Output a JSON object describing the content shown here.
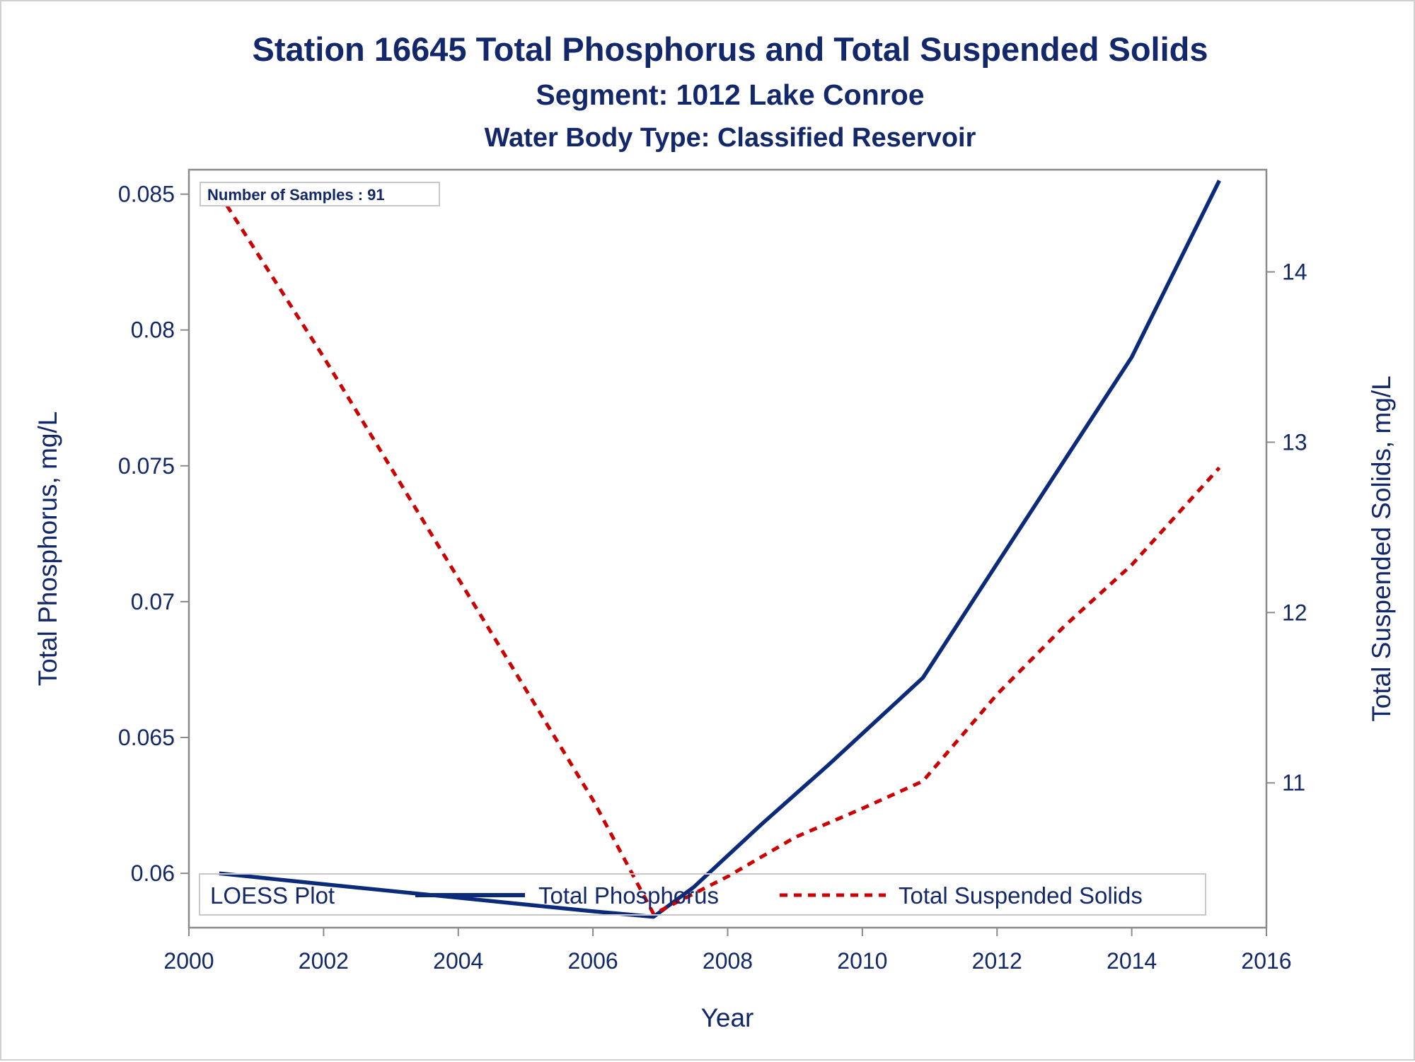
{
  "colors": {
    "text": "#12286b",
    "phosphorus": "#0b2a7a",
    "tss": "#cc0000",
    "frame": "#8a8a8a",
    "legend_border": "#c8c8c8"
  },
  "chart_data": {
    "type": "line",
    "title": "Station 16645  Total Phosphorus and Total Suspended Solids",
    "subtitle": "Segment: 1012  Lake Conroe",
    "subtitle2": "Water Body Type: Classified Reservoir",
    "xlabel": "Year",
    "ylabel": "Total Phosphorus, mg/L",
    "y2label": "Total Suspended Solids, mg/L",
    "xlim": [
      2000,
      2016
    ],
    "ylim": [
      0.058,
      0.0859
    ],
    "y2lim": [
      10.15,
      14.6
    ],
    "xticks": [
      "2000",
      "2002",
      "2004",
      "2006",
      "2008",
      "2010",
      "2012",
      "2014",
      "2016"
    ],
    "yticks": [
      "0.06",
      "0.065",
      "0.07",
      "0.075",
      "0.08",
      "0.085"
    ],
    "y2ticks": [
      "11",
      "12",
      "13",
      "14"
    ],
    "annotation": "Number of Samples : 91",
    "legend": {
      "title": "LOESS Plot",
      "placement": "bottom-inside",
      "entries": [
        "Total Phosphorus",
        "Total Suspended Solids"
      ]
    },
    "series": [
      {
        "name": "Total Phosphorus",
        "axis": "left",
        "style": "solid",
        "x": [
          2000.45,
          2002,
          2004,
          2006,
          2006.9,
          2007.5,
          2008.5,
          2009.5,
          2010.9,
          2012,
          2013,
          2014,
          2015.3
        ],
        "y": [
          0.06,
          0.0596,
          0.0591,
          0.0586,
          0.0584,
          0.0595,
          0.0618,
          0.064,
          0.0672,
          0.0714,
          0.0752,
          0.079,
          0.0855
        ]
      },
      {
        "name": "Total Suspended Solids",
        "axis": "right",
        "style": "dashed",
        "x": [
          2000.45,
          2002,
          2004,
          2006,
          2006.9,
          2008,
          2009,
          2010,
          2010.9,
          2012,
          2013,
          2014,
          2015.3
        ],
        "y": [
          14.46,
          13.5,
          12.2,
          10.9,
          10.23,
          10.45,
          10.68,
          10.85,
          11.01,
          11.52,
          11.92,
          12.28,
          12.85
        ]
      }
    ]
  }
}
